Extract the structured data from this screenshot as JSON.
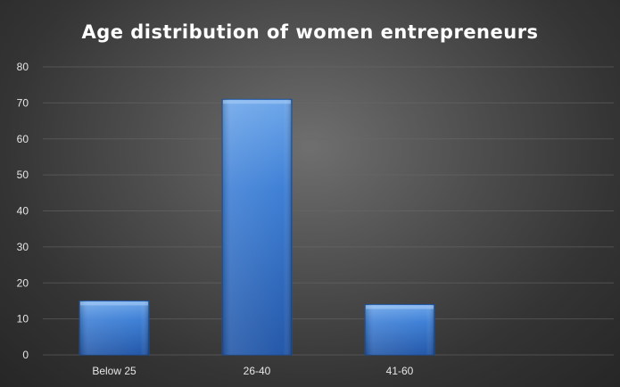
{
  "chart_data": {
    "type": "bar",
    "title": "Age distribution  of  women  entrepreneurs",
    "categories": [
      "Below 25",
      "26-40",
      "41-60",
      ""
    ],
    "values": [
      15,
      71,
      14,
      null
    ],
    "xlabel": "",
    "ylabel": "",
    "ylim": [
      0,
      80
    ],
    "yticks": [
      0,
      10,
      20,
      30,
      40,
      50,
      60,
      70,
      80
    ],
    "grid": true,
    "legend": "none",
    "colors": {
      "bar_top": "#6ea7ea",
      "bar_mid": "#3f80d6",
      "bar_bottom": "#2458a8",
      "background": "#3a3a3a",
      "text": "#ffffff"
    }
  }
}
